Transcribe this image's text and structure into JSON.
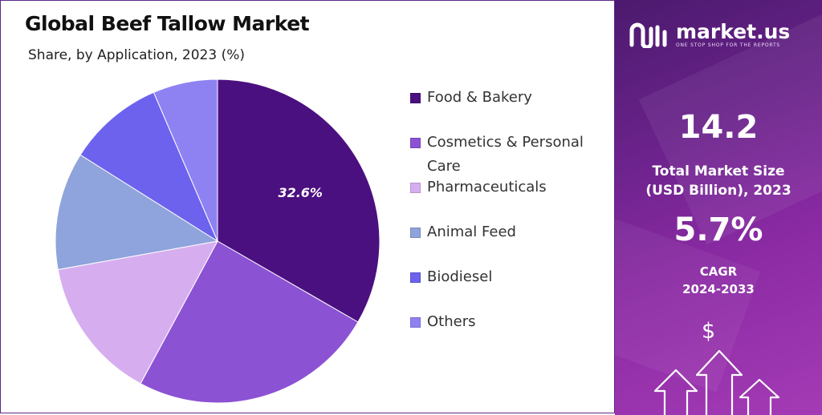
{
  "header": {
    "title": "Global Beef Tallow Market",
    "subtitle": "Share, by Application, 2023 (%)"
  },
  "chart_data": {
    "type": "pie",
    "title": "Global Beef Tallow Market",
    "subtitle": "Share, by Application, 2023 (%)",
    "start_angle_deg": 0,
    "direction": "clockwise",
    "slices": [
      {
        "label": "Food & Bakery",
        "value": 32.6,
        "color": "#4b1080",
        "data_label": "32.6%"
      },
      {
        "label": "Cosmetics & Personal Care",
        "value": 24.0,
        "color": "#8c52d4",
        "data_label": ""
      },
      {
        "label": "Pharmaceuticals",
        "value": 14.0,
        "color": "#d6aef0",
        "data_label": ""
      },
      {
        "label": "Animal Feed",
        "value": 11.5,
        "color": "#8fa3dc",
        "data_label": ""
      },
      {
        "label": "Biodiesel",
        "value": 9.4,
        "color": "#6d62ee",
        "data_label": ""
      },
      {
        "label": "Others",
        "value": 6.3,
        "color": "#8e82f2",
        "data_label": ""
      }
    ],
    "legend_position": "right"
  },
  "sidebar": {
    "brand_name": "market.us",
    "brand_tagline": "ONE STOP SHOP FOR THE REPORTS",
    "logo_icon": "market-us-logo-icon",
    "market_size_value": "14.2",
    "market_size_label_line1": "Total Market Size",
    "market_size_label_line2": "(USD Billion), 2023",
    "cagr_value": "5.7%",
    "cagr_label_line1": "CAGR",
    "cagr_label_line2": "2024-2033",
    "dollar_symbol": "$",
    "arrows_icon": "growth-arrows-icon",
    "accent_color": "#7a2596"
  }
}
